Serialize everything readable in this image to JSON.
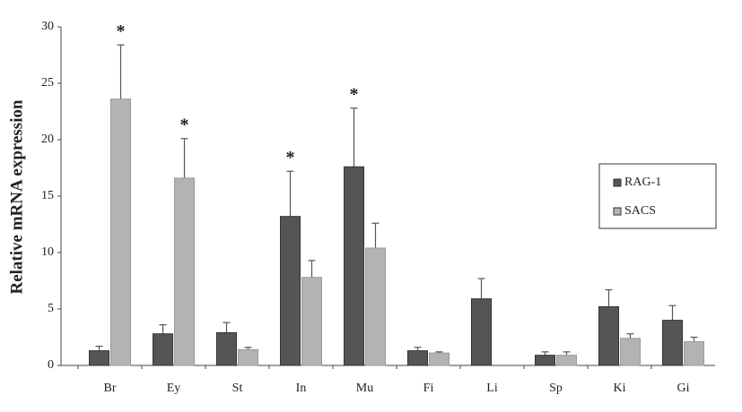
{
  "chart_data": {
    "type": "bar",
    "y_label": "Relative mRNA expression",
    "categories": [
      "Br",
      "Ey",
      "St",
      "In",
      "Mu",
      "Fi",
      "Li",
      "Sp",
      "Ki",
      "Gi"
    ],
    "series": [
      {
        "name": "RAG-1",
        "color": "#555555",
        "values": [
          1.3,
          2.8,
          2.9,
          13.2,
          17.6,
          1.3,
          5.9,
          0.9,
          5.2,
          4.0
        ],
        "errors": [
          0.4,
          0.8,
          0.9,
          4.0,
          5.2,
          0.3,
          1.8,
          0.3,
          1.5,
          1.3
        ]
      },
      {
        "name": "SACS",
        "color": "#b3b3b3",
        "values": [
          23.6,
          16.6,
          1.4,
          7.8,
          10.4,
          1.1,
          null,
          0.9,
          2.4,
          2.1
        ],
        "errors": [
          4.8,
          3.5,
          0.2,
          1.5,
          2.2,
          0.1,
          null,
          0.3,
          0.4,
          0.4
        ]
      }
    ],
    "annotations": [
      {
        "text": "*",
        "category": 0,
        "series": 1
      },
      {
        "text": "*",
        "category": 1,
        "series": 1
      },
      {
        "text": "*",
        "category": 3,
        "series": 0
      },
      {
        "text": "*",
        "category": 4,
        "series": 0
      }
    ],
    "ylim": [
      0,
      30
    ],
    "yticks": [
      0,
      5,
      10,
      15,
      20,
      25,
      30
    ],
    "legend": "right"
  }
}
